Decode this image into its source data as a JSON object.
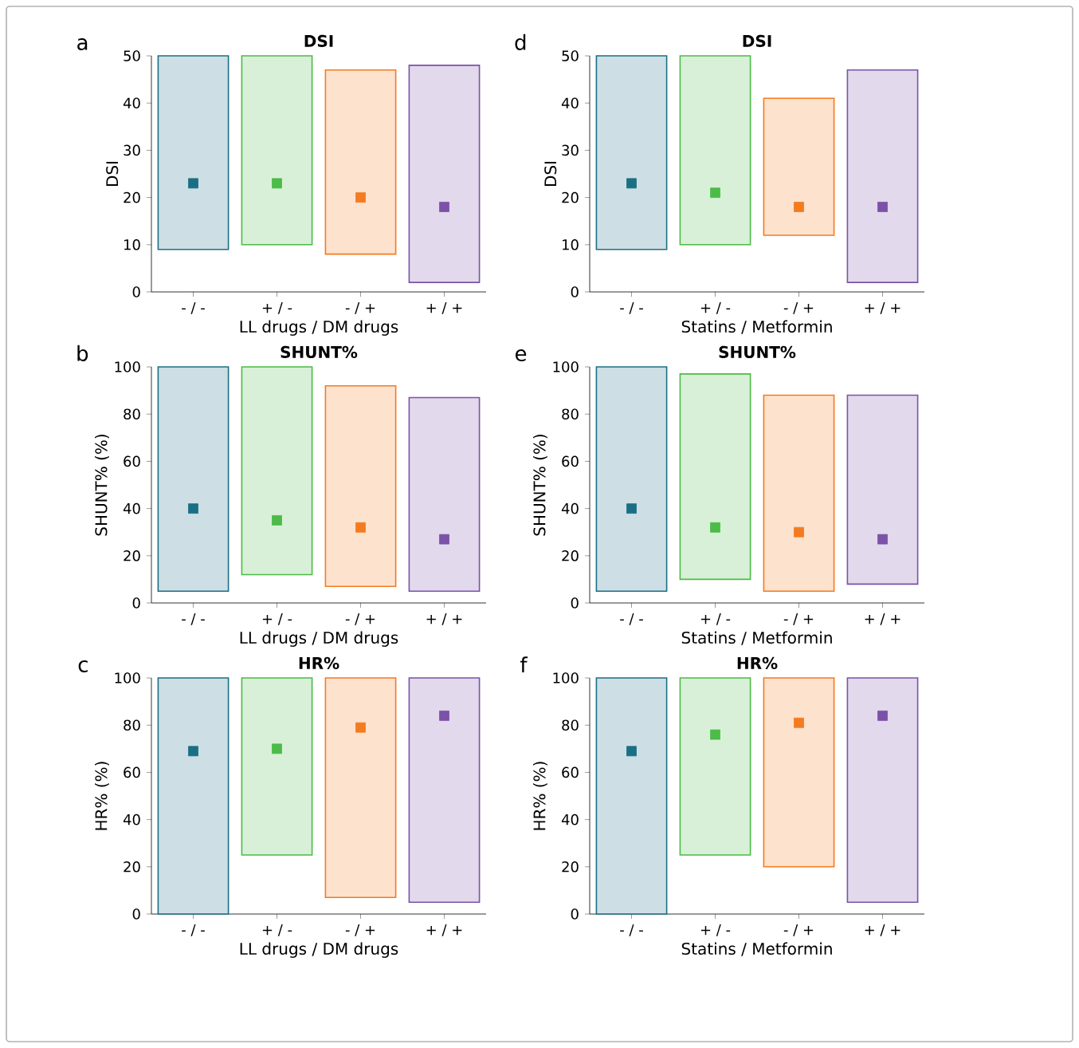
{
  "chart_data": [
    {
      "type": "bar",
      "title": "DSI",
      "xlabel": "LL drugs / DM drugs",
      "ylabel": "DSI",
      "annotations": [
        "a"
      ],
      "categories": [
        "- / -",
        "+ / -",
        "- / +",
        "+ / +"
      ],
      "ylim": [
        0,
        50
      ],
      "yticks": [
        0,
        10,
        20,
        30,
        40,
        50
      ],
      "series": [
        {
          "base": [
            9,
            10,
            8,
            2
          ],
          "values": [
            41,
            40,
            39,
            46
          ],
          "colors": [
            "#1b6f85",
            "#4cbb47",
            "#f47b20",
            "#7b52a8"
          ]
        },
        {
          "type": "scatter",
          "marker": "square",
          "x": [
            "- / -",
            "+ / -",
            "- / +",
            "+ / +"
          ],
          "values": [
            23,
            23,
            20,
            18
          ],
          "colors": [
            "#1b6f85",
            "#4cbb47",
            "#f47b20",
            "#7b52a8"
          ]
        }
      ]
    },
    {
      "type": "bar",
      "title": "DSI",
      "xlabel": "Statins / Metformin",
      "ylabel": "DSI",
      "annotations": [
        "d"
      ],
      "categories": [
        "- / -",
        "+ / -",
        "- / +",
        "+ / +"
      ],
      "ylim": [
        0,
        50
      ],
      "yticks": [
        0,
        10,
        20,
        30,
        40,
        50
      ],
      "series": [
        {
          "base": [
            9,
            10,
            12,
            2
          ],
          "values": [
            41,
            40,
            29,
            45
          ],
          "colors": [
            "#1b6f85",
            "#4cbb47",
            "#f47b20",
            "#7b52a8"
          ]
        },
        {
          "type": "scatter",
          "marker": "square",
          "x": [
            "- / -",
            "+ / -",
            "- / +",
            "+ / +"
          ],
          "values": [
            23,
            21,
            18,
            18
          ],
          "colors": [
            "#1b6f85",
            "#4cbb47",
            "#f47b20",
            "#7b52a8"
          ]
        }
      ]
    },
    {
      "type": "bar",
      "title": "SHUNT%",
      "xlabel": "LL drugs / DM drugs",
      "ylabel": "SHUNT% (%)",
      "annotations": [
        "b"
      ],
      "categories": [
        "- / -",
        "+ / -",
        "- / +",
        "+ / +"
      ],
      "ylim": [
        0,
        100
      ],
      "yticks": [
        0,
        20,
        40,
        60,
        80,
        100
      ],
      "series": [
        {
          "base": [
            5,
            12,
            7,
            5
          ],
          "values": [
            95,
            88,
            85,
            82
          ],
          "colors": [
            "#1b6f85",
            "#4cbb47",
            "#f47b20",
            "#7b52a8"
          ]
        },
        {
          "type": "scatter",
          "marker": "square",
          "x": [
            "- / -",
            "+ / -",
            "- / +",
            "+ / +"
          ],
          "values": [
            40,
            35,
            32,
            27
          ],
          "colors": [
            "#1b6f85",
            "#4cbb47",
            "#f47b20",
            "#7b52a8"
          ]
        }
      ]
    },
    {
      "type": "bar",
      "title": "SHUNT%",
      "xlabel": "Statins / Metformin",
      "ylabel": "SHUNT% (%)",
      "annotations": [
        "e"
      ],
      "categories": [
        "- / -",
        "+ / -",
        "- / +",
        "+ / +"
      ],
      "ylim": [
        0,
        100
      ],
      "yticks": [
        0,
        20,
        40,
        60,
        80,
        100
      ],
      "series": [
        {
          "base": [
            5,
            10,
            5,
            8
          ],
          "values": [
            95,
            87,
            83,
            80
          ],
          "colors": [
            "#1b6f85",
            "#4cbb47",
            "#f47b20",
            "#7b52a8"
          ]
        },
        {
          "type": "scatter",
          "marker": "square",
          "x": [
            "- / -",
            "+ / -",
            "- / +",
            "+ / +"
          ],
          "values": [
            40,
            32,
            30,
            27
          ],
          "colors": [
            "#1b6f85",
            "#4cbb47",
            "#f47b20",
            "#7b52a8"
          ]
        }
      ]
    },
    {
      "type": "bar",
      "title": "HR%",
      "xlabel": "LL drugs / DM drugs",
      "ylabel": "HR% (%)",
      "annotations": [
        "c"
      ],
      "categories": [
        "- / -",
        "+ / -",
        "- / +",
        "+ / +"
      ],
      "ylim": [
        0,
        100
      ],
      "yticks": [
        0,
        20,
        40,
        60,
        80,
        100
      ],
      "series": [
        {
          "base": [
            0,
            25,
            7,
            5
          ],
          "values": [
            100,
            75,
            93,
            95
          ],
          "colors": [
            "#1b6f85",
            "#4cbb47",
            "#f47b20",
            "#7b52a8"
          ]
        },
        {
          "type": "scatter",
          "marker": "square",
          "x": [
            "- / -",
            "+ / -",
            "- / +",
            "+ / +"
          ],
          "values": [
            69,
            70,
            79,
            84
          ],
          "colors": [
            "#1b6f85",
            "#4cbb47",
            "#f47b20",
            "#7b52a8"
          ]
        }
      ]
    },
    {
      "type": "bar",
      "title": "HR%",
      "xlabel": "Statins / Metformin",
      "ylabel": "HR% (%)",
      "annotations": [
        "f"
      ],
      "categories": [
        "- / -",
        "+ / -",
        "- / +",
        "+ / +"
      ],
      "ylim": [
        0,
        100
      ],
      "yticks": [
        0,
        20,
        40,
        60,
        80,
        100
      ],
      "series": [
        {
          "base": [
            0,
            25,
            20,
            5
          ],
          "values": [
            100,
            75,
            80,
            95
          ],
          "colors": [
            "#1b6f85",
            "#4cbb47",
            "#f47b20",
            "#7b52a8"
          ]
        },
        {
          "type": "scatter",
          "marker": "square",
          "x": [
            "- / -",
            "+ / -",
            "- / +",
            "+ / +"
          ],
          "values": [
            69,
            76,
            81,
            84
          ],
          "colors": [
            "#1b6f85",
            "#4cbb47",
            "#f47b20",
            "#7b52a8"
          ]
        }
      ]
    }
  ]
}
